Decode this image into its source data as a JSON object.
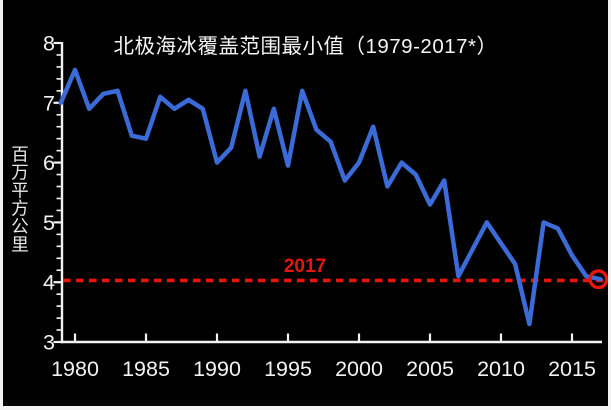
{
  "frame": {
    "background": "#000000",
    "edge_color": "#f2f2f2"
  },
  "chart_data": {
    "type": "line",
    "title": "北极海冰覆盖范围最小值（1979-2017*）",
    "ylabel": "百万平方公里",
    "xlabel": "",
    "x": [
      1979,
      1980,
      1981,
      1982,
      1983,
      1984,
      1985,
      1986,
      1987,
      1988,
      1989,
      1990,
      1991,
      1992,
      1993,
      1994,
      1995,
      1996,
      1997,
      1998,
      1999,
      2000,
      2001,
      2002,
      2003,
      2004,
      2005,
      2006,
      2007,
      2008,
      2009,
      2010,
      2011,
      2012,
      2013,
      2014,
      2015,
      2016,
      2017
    ],
    "series": [
      {
        "name": "arctic-sea-ice-minimum-extent",
        "color": "#3b6bd6",
        "values": [
          7.0,
          7.55,
          6.9,
          7.15,
          7.2,
          6.45,
          6.4,
          7.1,
          6.9,
          7.05,
          6.9,
          6.0,
          6.25,
          7.2,
          6.1,
          6.9,
          5.95,
          7.2,
          6.55,
          6.35,
          5.7,
          6.0,
          6.6,
          5.6,
          6.0,
          5.8,
          5.3,
          5.7,
          4.1,
          4.55,
          5.0,
          4.65,
          4.3,
          3.3,
          5.0,
          4.9,
          4.45,
          4.1,
          4.05
        ]
      }
    ],
    "ylim": [
      3,
      8
    ],
    "xlim": [
      1979,
      2017.8
    ],
    "y_ticks": [
      8,
      7,
      6,
      5,
      4,
      3
    ],
    "y_minor_tick_step": 0.2,
    "x_ticks": [
      1980,
      1985,
      1990,
      1995,
      2000,
      2005,
      2010,
      2015
    ],
    "grid": false,
    "background": "#000000",
    "axis_color": "#f2f2f2",
    "reference_line": {
      "label": "2017",
      "value": 4.03,
      "color": "#e8150c",
      "style": "dashed"
    },
    "endpoint_marker": {
      "year": 2017,
      "value": 4.05,
      "shape": "open-circle",
      "color": "#e8150c"
    }
  }
}
